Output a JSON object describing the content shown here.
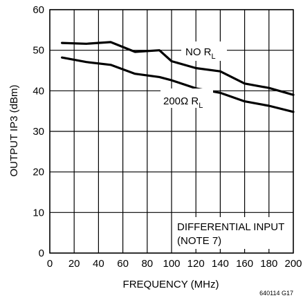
{
  "chart_data": {
    "type": "line",
    "xlabel": "FREQUENCY (MHz)",
    "ylabel": "OUTPUT IP3 (dBm)",
    "xlim": [
      0,
      200
    ],
    "ylim": [
      0,
      60
    ],
    "x_ticks": [
      0,
      20,
      40,
      60,
      80,
      100,
      120,
      140,
      160,
      180,
      200
    ],
    "y_ticks": [
      0,
      10,
      20,
      30,
      40,
      50,
      60
    ],
    "grid": true,
    "series": [
      {
        "name": "NO R",
        "name_subscript": "L",
        "x": [
          10,
          30,
          50,
          70,
          90,
          100,
          120,
          140,
          160,
          180,
          200
        ],
        "y": [
          51.8,
          51.6,
          52.0,
          49.6,
          50.0,
          47.3,
          45.6,
          44.8,
          41.8,
          40.7,
          39.0
        ]
      },
      {
        "name": "200Ω R",
        "name_subscript": "L",
        "x": [
          10,
          30,
          50,
          70,
          90,
          100,
          120,
          140,
          160,
          180,
          200
        ],
        "y": [
          48.2,
          47.1,
          46.4,
          44.2,
          43.4,
          42.6,
          40.6,
          39.5,
          37.4,
          36.3,
          34.8
        ]
      }
    ],
    "annotations": {
      "note_line1": "DIFFERENTIAL INPUT",
      "note_line2": "(NOTE 7)",
      "figure_code": "640114 G17"
    }
  }
}
